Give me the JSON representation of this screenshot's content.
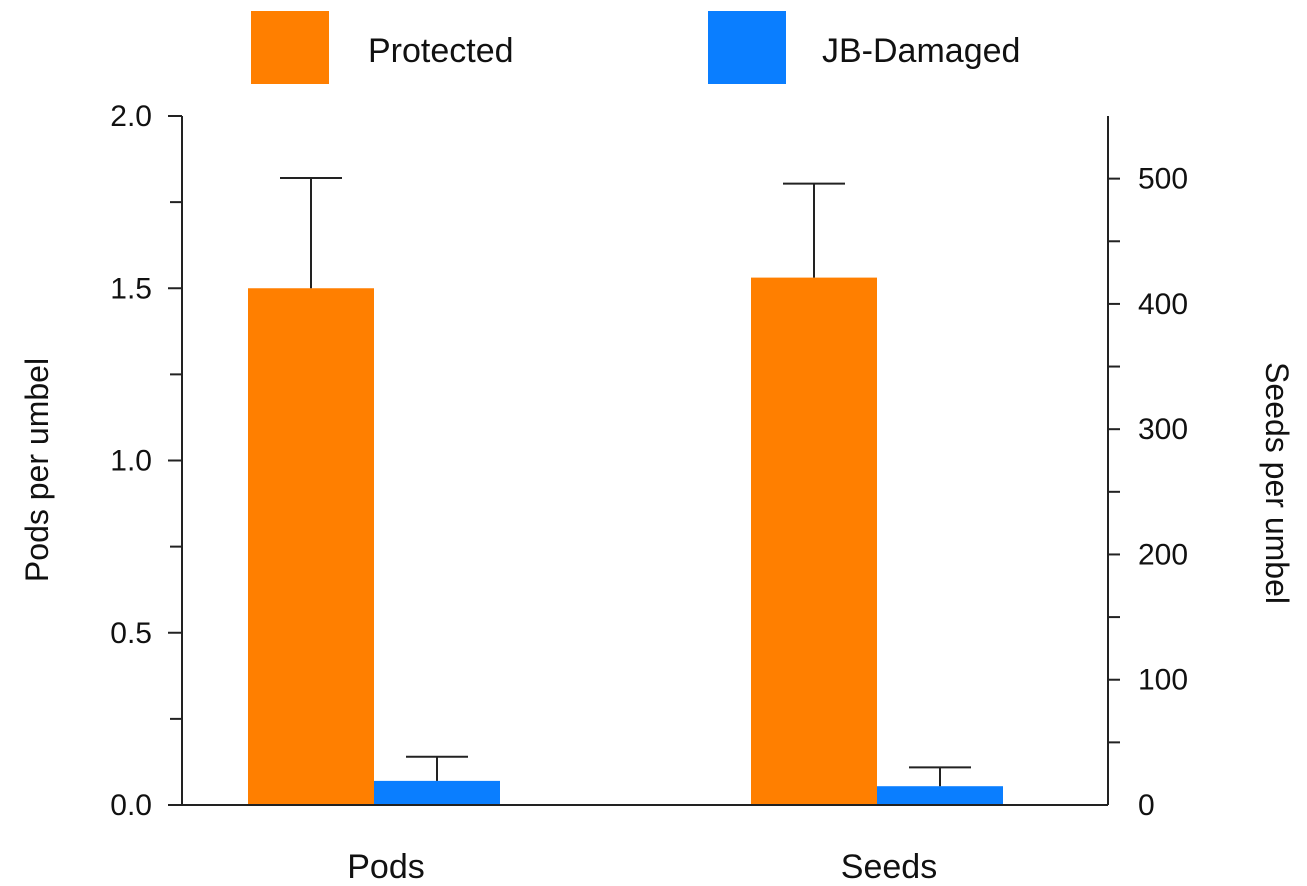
{
  "chart_data": {
    "type": "bar",
    "categories": [
      "Pods",
      "Seeds"
    ],
    "series": [
      {
        "name": "Protected",
        "color": "#ff7f00",
        "values": [
          1.5,
          421
        ],
        "errors": [
          0.32,
          75
        ]
      },
      {
        "name": "JB-Damaged",
        "color": "#0a7eff",
        "values": [
          0.07,
          15
        ],
        "errors": [
          0.07,
          15
        ]
      }
    ],
    "axis_assignment": [
      "left",
      "right"
    ],
    "ylabel_left": "Pods per umbel",
    "ylabel_right": "Seeds per umbel",
    "ylim_left": [
      0,
      2.0
    ],
    "ylim_right": [
      0,
      550
    ],
    "yticks_left": [
      "0.0",
      "0.5",
      "1.0",
      "1.5",
      "2.0"
    ],
    "yticks_right": [
      "0",
      "100",
      "200",
      "300",
      "400",
      "500"
    ],
    "legend_position": "top",
    "grid": false
  }
}
